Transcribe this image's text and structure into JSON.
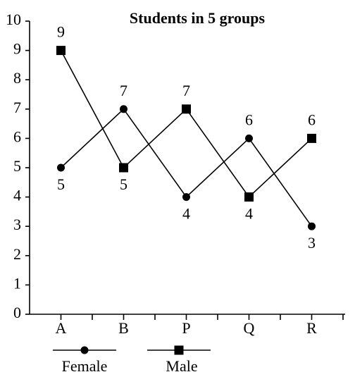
{
  "chart_data": {
    "type": "line",
    "title": "Students in 5 groups",
    "categories": [
      "A",
      "B",
      "P",
      "Q",
      "R"
    ],
    "series": [
      {
        "name": "Female",
        "color": "#000000",
        "marker": "circle",
        "values": [
          5,
          7,
          4,
          6,
          3
        ]
      },
      {
        "name": "Male",
        "color": "#000000",
        "marker": "square",
        "values": [
          9,
          5,
          7,
          4,
          6
        ]
      }
    ],
    "ylim": [
      0,
      10
    ],
    "yticks": [
      0,
      1,
      2,
      3,
      4,
      5,
      6,
      7,
      8,
      9,
      10
    ],
    "grid": false,
    "legend": "bottom"
  }
}
